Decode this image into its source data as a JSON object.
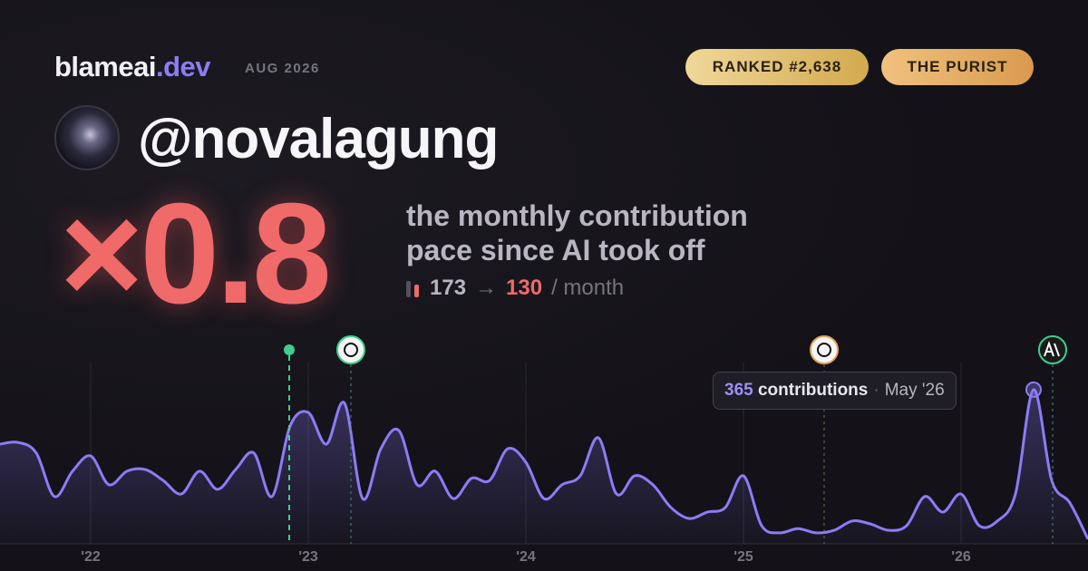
{
  "header": {
    "brand": "blameai",
    "brand_tld": ".dev",
    "date": "AUG 2026",
    "badges": [
      "RANKED #2,638",
      "THE PURIST"
    ],
    "handle": "@novalagung"
  },
  "headline": {
    "multiplier": "×0.8",
    "description": [
      "the monthly contribution",
      "pace since AI took off"
    ],
    "before": "173",
    "arrow": "→",
    "after": "130",
    "unit": "/ month"
  },
  "chart_data": {
    "type": "area",
    "series": [
      {
        "name": "contributions",
        "color": "#8b7cf6",
        "values": [
          236,
          240,
          215,
          112,
          172,
          208,
          140,
          172,
          176,
          150,
          118,
          172,
          129,
          176,
          215,
          112,
          279,
          311,
          236,
          333,
          107,
          225,
          268,
          140,
          172,
          107,
          155,
          150,
          225,
          193,
          107,
          140,
          161,
          251,
          118,
          161,
          140,
          86,
          60,
          75,
          86,
          161,
          43,
          26,
          36,
          26,
          32,
          54,
          47,
          32,
          43,
          112,
          75,
          118,
          43,
          54,
          118,
          365,
          150,
          97,
          11
        ]
      }
    ],
    "xlim": [
      0,
      60
    ],
    "xticks": [
      {
        "value": 5,
        "label": "'22"
      },
      {
        "value": 17,
        "label": "'23"
      },
      {
        "value": 29,
        "label": "'24"
      },
      {
        "value": 41,
        "label": "'25"
      },
      {
        "value": 53,
        "label": "'26"
      }
    ],
    "ylim": [
      0,
      400
    ],
    "tooltip": {
      "index": 57,
      "unit": "contributions",
      "date": "May '26"
    }
  }
}
